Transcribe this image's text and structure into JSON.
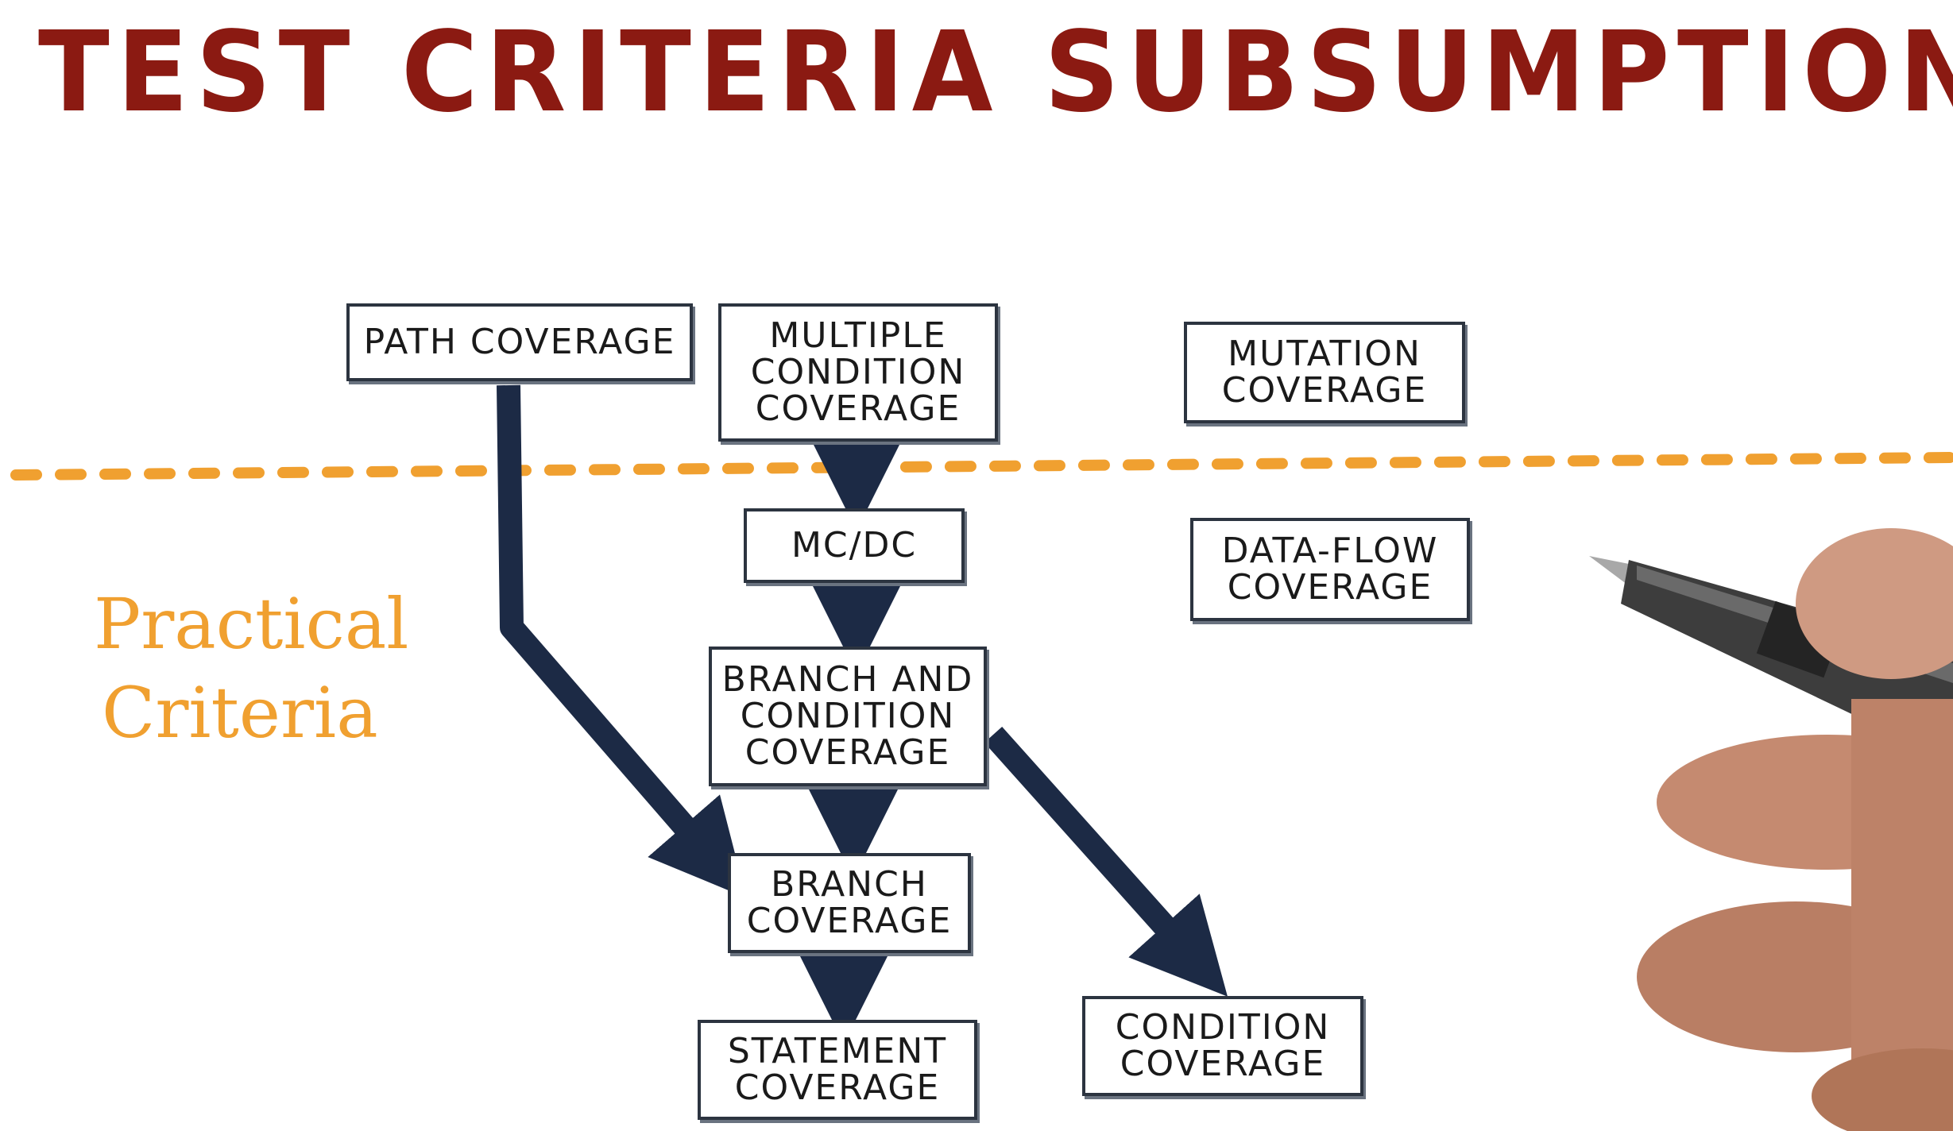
{
  "title": "TEST CRITERIA SUBSUMPTION",
  "side_label": {
    "line1": "Practical",
    "line2": "Criteria"
  },
  "nodes": {
    "path_coverage": "PATH COVERAGE",
    "multiple_condition_coverage": "MULTIPLE\nCONDITION\nCOVERAGE",
    "mutation_coverage": "MUTATION\nCOVERAGE",
    "mc_dc": "MC/DC",
    "data_flow_coverage": "DATA-FLOW\nCOVERAGE",
    "branch_and_condition_coverage": "BRANCH AND\nCONDITION\nCOVERAGE",
    "branch_coverage": "BRANCH\nCOVERAGE",
    "statement_coverage": "STATEMENT\nCOVERAGE",
    "condition_coverage": "CONDITION\nCOVERAGE"
  },
  "colors": {
    "title": "#8b1a12",
    "practical_line": "#f0a030",
    "arrow": "#1c2a45",
    "box_border": "#2c3440"
  }
}
